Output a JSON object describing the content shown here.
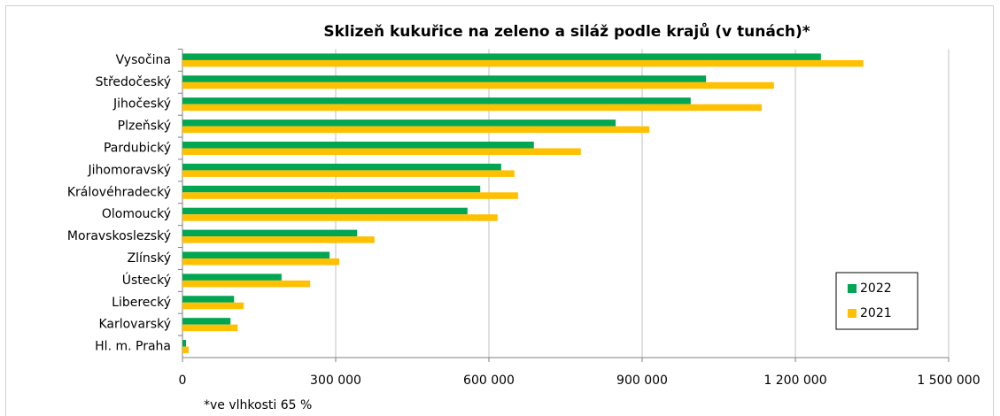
{
  "chart_data": {
    "type": "bar",
    "orientation": "horizontal",
    "title": "Sklizeň kukuřice na zeleno a siláž podle krajů (v tunách)*",
    "note": "*ve vlhkosti 65 %",
    "categories": [
      "Vysočina",
      "Středočeský",
      "Jihočeský",
      "Plzeňský",
      "Pardubický",
      "Jihomoravský",
      "Královéhradecký",
      "Olomoucký",
      "Moravskoslezský",
      "Zlínský",
      "Ústecký",
      "Liberecký",
      "Karlovarský",
      "Hl. m. Praha"
    ],
    "series": [
      {
        "name": "2022",
        "color": "#00a651",
        "values": [
          1250000,
          1025000,
          995000,
          848000,
          688000,
          624000,
          583000,
          558000,
          342000,
          288000,
          194000,
          101000,
          94000,
          7000
        ]
      },
      {
        "name": "2021",
        "color": "#ffc000",
        "values": [
          1333000,
          1158000,
          1134000,
          914000,
          780000,
          650000,
          657000,
          617000,
          376000,
          307000,
          250000,
          120000,
          108000,
          12000
        ]
      }
    ],
    "xlim": [
      0,
      1500000
    ],
    "xticks": [
      0,
      {
        "value": 300000,
        "label": "300 000"
      },
      {
        "value": 600000,
        "label": "600 000"
      },
      {
        "value": 900000,
        "label": "900 000"
      },
      {
        "value": 1200000,
        "label": "1 200 000"
      },
      {
        "value": 1500000,
        "label": "1 500 000"
      }
    ],
    "grid": true,
    "legend": "lower right"
  }
}
